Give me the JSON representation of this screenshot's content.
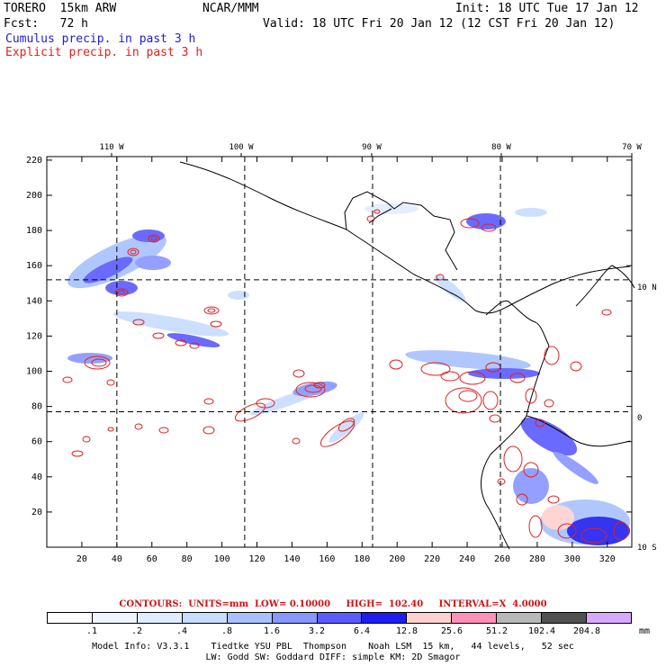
{
  "header": {
    "model": "TORERO  15km ARW",
    "center": "NCAR/MMM",
    "init": "Init: 18 UTC Tue 17 Jan 12",
    "fcst": "Fcst:   72 h",
    "valid": "Valid: 18 UTC Fri 20 Jan 12 (12 CST Fri 20 Jan 12)",
    "line_cumulus": "Cumulus precip. in past 3 h",
    "line_explicit": "Explicit precip. in past 3 h"
  },
  "map": {
    "lon_labels": [
      "110 W",
      "100 W",
      "90 W",
      "80 W",
      "70 W"
    ],
    "lat_labels": [
      "10 N",
      "0",
      "10 S"
    ],
    "y_ticks": [
      "220",
      "200",
      "180",
      "160",
      "140",
      "120",
      "100",
      "80",
      "60",
      "40",
      "20"
    ],
    "x_ticks": [
      "20",
      "40",
      "60",
      "80",
      "100",
      "120",
      "140",
      "160",
      "180",
      "200",
      "220",
      "240",
      "260",
      "280",
      "300",
      "320"
    ],
    "grid_x": [
      40,
      113,
      186,
      259
    ],
    "grid_y": [
      152,
      77
    ]
  },
  "contour_info": "CONTOURS:  UNITS=mm  LOW= 0.10000     HIGH=  102.40     INTERVAL=X  4.0000",
  "colorbar": {
    "labels": [
      ".1",
      ".2",
      ".4",
      ".8",
      "1.6",
      "3.2",
      "6.4",
      "12.8",
      "25.6",
      "51.2",
      "102.4",
      "204.8"
    ],
    "unit": "mm",
    "colors": [
      "#ffffff",
      "#f0f4ff",
      "#e0ecff",
      "#c8dcff",
      "#a8c0ff",
      "#8896ff",
      "#5a5aff",
      "#1e1ef0",
      "#ffd0d0",
      "#ff90b8",
      "#b8b8b8",
      "#505050",
      "#d8a8ff"
    ]
  },
  "footer": {
    "line1": "Model Info: V3.3.1    Tiedtke YSU PBL  Thompson    Noah LSM  15 km,   44 levels,   52 sec",
    "line2": "LW: Godd SW: Goddard DIFF: simple KM: 2D Smagor"
  }
}
